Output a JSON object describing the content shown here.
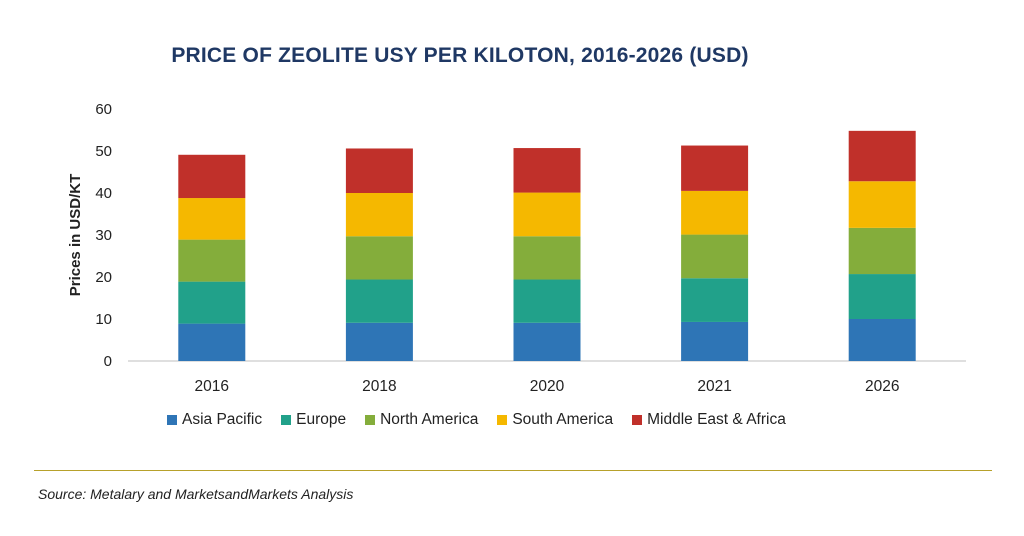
{
  "chart_data": {
    "type": "bar",
    "stacked": true,
    "title": "PRICE OF ZEOLITE USY PER KILOTON, 2016-2026 (USD)",
    "ylabel": "Prices in USD/KT",
    "xlabel": "",
    "ylim": [
      0,
      60
    ],
    "yticks": [
      0,
      10,
      20,
      30,
      40,
      50,
      60
    ],
    "grid": false,
    "legend_position": "bottom",
    "categories": [
      "2016",
      "2018",
      "2020",
      "2021",
      "2026"
    ],
    "series": [
      {
        "name": "Asia Pacific",
        "color": "#2e75b6",
        "values": [
          8.9,
          9.1,
          9.1,
          9.3,
          10.0
        ]
      },
      {
        "name": "Europe",
        "color": "#21a18a",
        "values": [
          10.0,
          10.3,
          10.3,
          10.4,
          10.7
        ]
      },
      {
        "name": "North America",
        "color": "#84ad3b",
        "values": [
          10.0,
          10.3,
          10.3,
          10.4,
          11.0
        ]
      },
      {
        "name": "South America",
        "color": "#f5b800",
        "values": [
          9.9,
          10.3,
          10.4,
          10.4,
          11.1
        ]
      },
      {
        "name": "Middle East & Africa",
        "color": "#c0302a",
        "values": [
          10.3,
          10.6,
          10.6,
          10.8,
          12.0
        ]
      }
    ]
  },
  "source": "Source: Metalary and MarketsandMarkets Analysis"
}
